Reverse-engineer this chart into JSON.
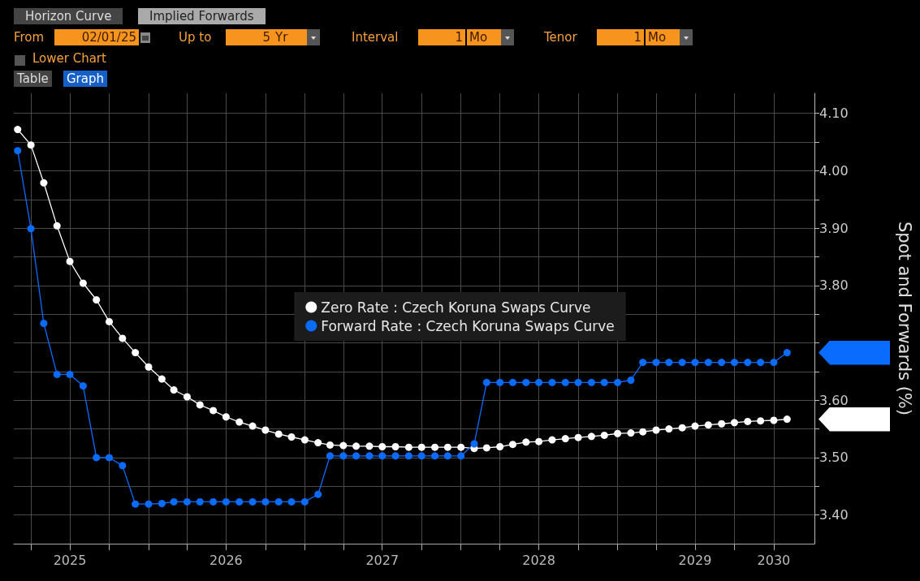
{
  "chart_data": {
    "type": "line",
    "annotations": [
      "Horizon Curve",
      "Implied Forwards",
      "From",
      "02/01/25",
      "Up to",
      "5",
      "Yr",
      "Interval",
      "1",
      "Mo",
      "Tenor",
      "1",
      "Mo",
      "Lower Chart",
      "Table",
      "Graph"
    ],
    "ylabel": "Spot and Forwards (%)",
    "x": [
      "2025-03",
      "2025-04",
      "2025-05",
      "2025-06",
      "2025-07",
      "2025-08",
      "2025-09",
      "2025-10",
      "2025-11",
      "2025-12",
      "2026-01",
      "2026-02",
      "2026-03",
      "2026-04",
      "2026-05",
      "2026-06",
      "2026-07",
      "2026-08",
      "2026-09",
      "2026-10",
      "2026-11",
      "2026-12",
      "2027-01",
      "2027-02",
      "2027-03",
      "2027-04",
      "2027-05",
      "2027-06",
      "2027-07",
      "2027-08",
      "2027-09",
      "2027-10",
      "2027-11",
      "2027-12",
      "2028-01",
      "2028-02",
      "2028-03",
      "2028-04",
      "2028-05",
      "2028-06",
      "2028-07",
      "2028-08",
      "2028-09",
      "2028-10",
      "2028-11",
      "2028-12",
      "2029-01",
      "2029-02",
      "2029-03",
      "2029-04",
      "2029-05",
      "2029-06",
      "2029-07",
      "2029-08",
      "2029-09",
      "2029-10",
      "2029-11",
      "2029-12",
      "2030-01",
      "2030-02"
    ],
    "series": [
      {
        "name": "Zero Rate : Czech Koruna Swaps Curve",
        "color": "#ffffff",
        "values": [
          4.072,
          4.045,
          3.979,
          3.904,
          3.842,
          3.804,
          3.775,
          3.737,
          3.708,
          3.683,
          3.658,
          3.637,
          3.618,
          3.606,
          3.592,
          3.582,
          3.571,
          3.562,
          3.555,
          3.548,
          3.541,
          3.536,
          3.531,
          3.526,
          3.522,
          3.521,
          3.52,
          3.52,
          3.519,
          3.519,
          3.518,
          3.518,
          3.518,
          3.518,
          3.518,
          3.516,
          3.517,
          3.519,
          3.523,
          3.527,
          3.528,
          3.531,
          3.533,
          3.535,
          3.537,
          3.539,
          3.542,
          3.543,
          3.545,
          3.548,
          3.55,
          3.552,
          3.555,
          3.557,
          3.559,
          3.561,
          3.563,
          3.564,
          3.565,
          3.567
        ]
      },
      {
        "name": "Forward Rate : Czech Koruna Swaps Curve",
        "color": "#0a6cff",
        "values": [
          4.035,
          3.899,
          3.734,
          3.645,
          3.645,
          3.625,
          3.5,
          3.5,
          3.486,
          3.419,
          3.419,
          3.42,
          3.423,
          3.423,
          3.423,
          3.423,
          3.423,
          3.423,
          3.423,
          3.423,
          3.423,
          3.423,
          3.423,
          3.436,
          3.503,
          3.503,
          3.503,
          3.503,
          3.503,
          3.503,
          3.503,
          3.503,
          3.503,
          3.503,
          3.503,
          3.524,
          3.631,
          3.631,
          3.631,
          3.631,
          3.631,
          3.631,
          3.631,
          3.631,
          3.631,
          3.631,
          3.631,
          3.635,
          3.666,
          3.666,
          3.666,
          3.666,
          3.666,
          3.666,
          3.666,
          3.666,
          3.666,
          3.666,
          3.666,
          3.683
        ]
      }
    ],
    "xlim": [
      "2025-02-20",
      "2030-04-06"
    ],
    "xticks": [
      {
        "value": "2025-04-01",
        "label": null
      },
      {
        "value": "2025-07-01",
        "label": "2025"
      },
      {
        "value": "2025-10-01",
        "label": null
      },
      {
        "value": "2026-01-01",
        "label": null
      },
      {
        "value": "2026-04-01",
        "label": null
      },
      {
        "value": "2026-07-01",
        "label": "2026"
      },
      {
        "value": "2026-10-01",
        "label": null
      },
      {
        "value": "2027-01-01",
        "label": null
      },
      {
        "value": "2027-04-01",
        "label": null
      },
      {
        "value": "2027-07-01",
        "label": "2027"
      },
      {
        "value": "2027-10-01",
        "label": null
      },
      {
        "value": "2028-01-01",
        "label": null
      },
      {
        "value": "2028-04-01",
        "label": null
      },
      {
        "value": "2028-07-01",
        "label": "2028"
      },
      {
        "value": "2028-10-01",
        "label": null
      },
      {
        "value": "2029-01-01",
        "label": null
      },
      {
        "value": "2029-04-01",
        "label": null
      },
      {
        "value": "2029-07-01",
        "label": "2029"
      },
      {
        "value": "2029-10-01",
        "label": null
      },
      {
        "value": "2030-01-01",
        "label": "2030"
      }
    ],
    "ylim": [
      3.35,
      4.135
    ],
    "yticks": [
      {
        "value": 3.4,
        "label": "3.40"
      },
      {
        "value": 3.45,
        "label": null
      },
      {
        "value": 3.5,
        "label": "3.50"
      },
      {
        "value": 3.55,
        "label": null
      },
      {
        "value": 3.6,
        "label": "3.60"
      },
      {
        "value": 3.65,
        "label": null
      },
      {
        "value": 3.7,
        "label": null
      },
      {
        "value": 3.75,
        "label": null
      },
      {
        "value": 3.8,
        "label": "3.80"
      },
      {
        "value": 3.85,
        "label": null
      },
      {
        "value": 3.9,
        "label": "3.90"
      },
      {
        "value": 3.95,
        "label": null
      },
      {
        "value": 4.0,
        "label": "4.00"
      },
      {
        "value": 4.05,
        "label": null
      },
      {
        "value": 4.1,
        "label": "4.10"
      }
    ],
    "grid": true,
    "legend": "center",
    "marker": "circle",
    "line_style": "solid"
  }
}
